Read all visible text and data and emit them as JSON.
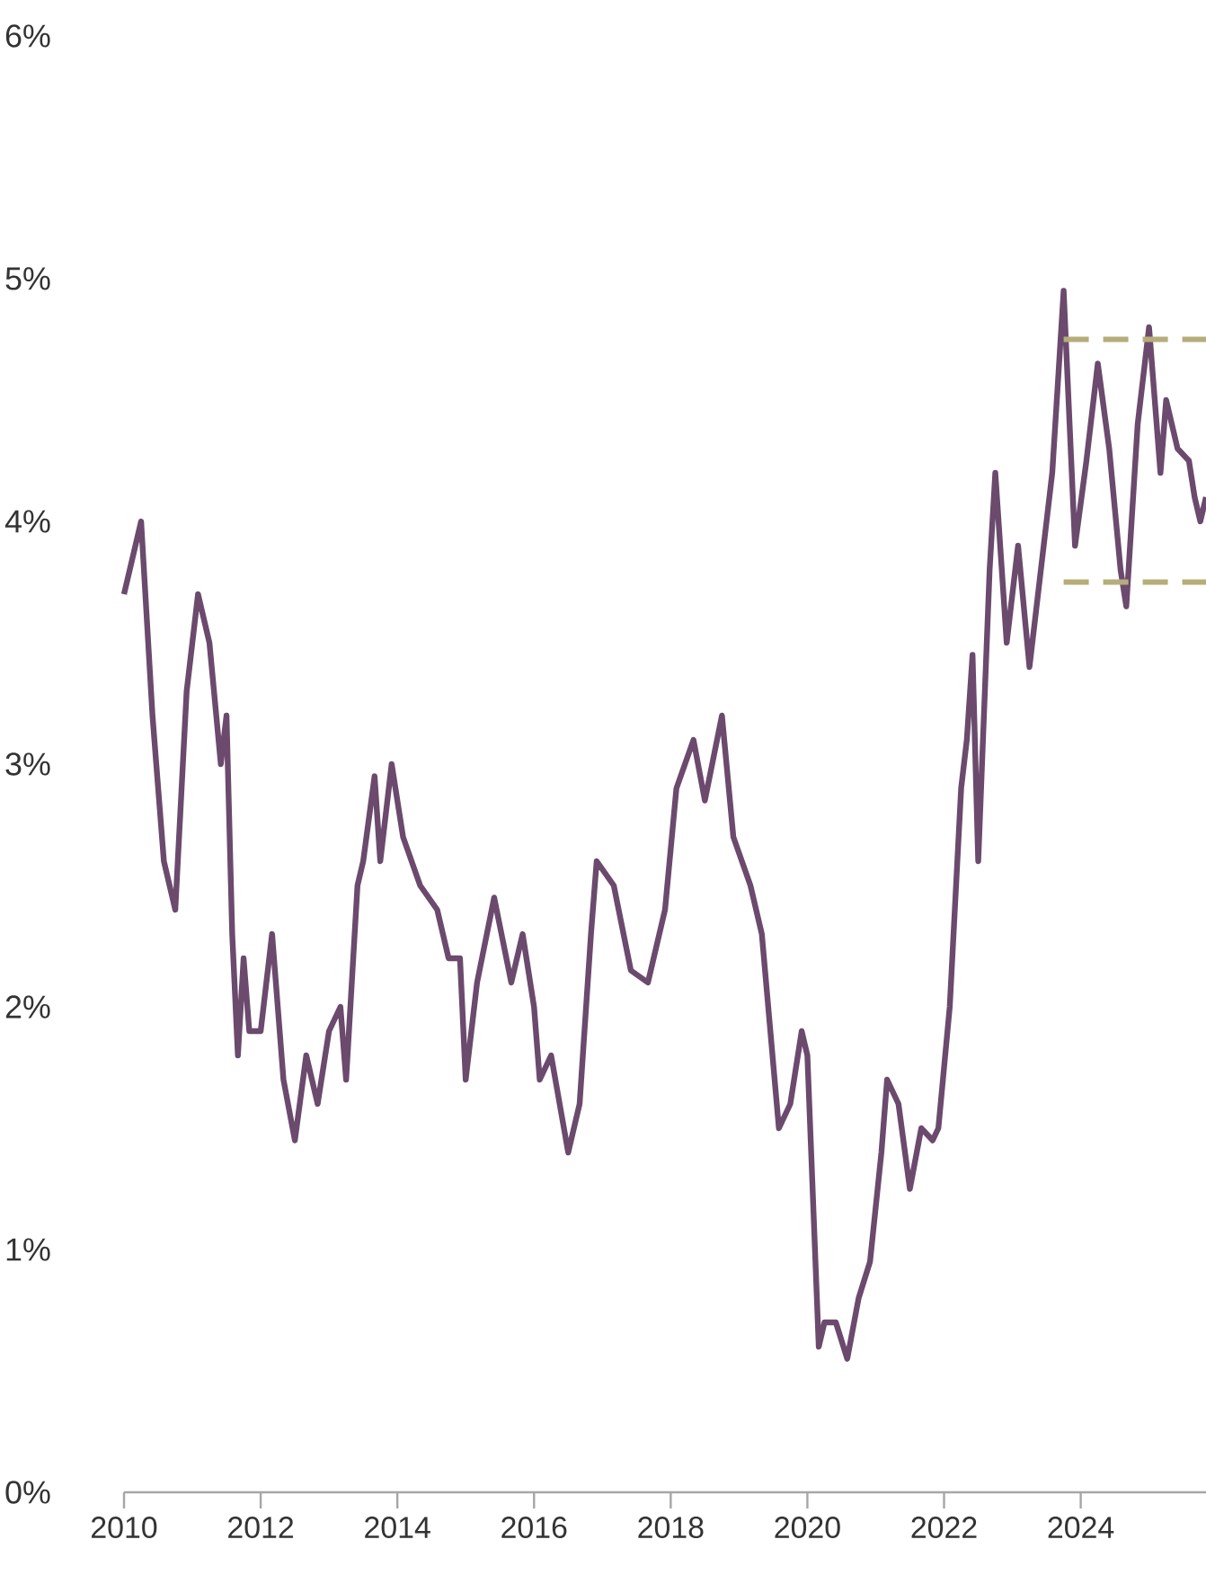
{
  "chart_data": {
    "type": "line",
    "xlim": [
      "2010-01",
      "2025-11"
    ],
    "ylim": [
      0,
      6
    ],
    "xticks": [
      "2010",
      "2012",
      "2014",
      "2016",
      "2018",
      "2020",
      "2022",
      "2024"
    ],
    "yticks": [
      {
        "value": 0,
        "label": "0%"
      },
      {
        "value": 1,
        "label": "1%"
      },
      {
        "value": 2,
        "label": "2%"
      },
      {
        "value": 3,
        "label": "3%"
      },
      {
        "value": 4,
        "label": "4%"
      },
      {
        "value": 5,
        "label": "5%"
      },
      {
        "value": 6,
        "label": "6%"
      }
    ],
    "series": [
      {
        "color": "#6b4a6e",
        "x": [
          "2010-01",
          "2010-04",
          "2010-06",
          "2010-08",
          "2010-10",
          "2010-12",
          "2011-02",
          "2011-04",
          "2011-06",
          "2011-07",
          "2011-08",
          "2011-09",
          "2011-10",
          "2011-11",
          "2012-01",
          "2012-03",
          "2012-05",
          "2012-07",
          "2012-09",
          "2012-11",
          "2013-01",
          "2013-03",
          "2013-04",
          "2013-06",
          "2013-07",
          "2013-09",
          "2013-10",
          "2013-12",
          "2014-02",
          "2014-05",
          "2014-08",
          "2014-10",
          "2014-12",
          "2015-01",
          "2015-03",
          "2015-06",
          "2015-09",
          "2015-11",
          "2016-01",
          "2016-02",
          "2016-04",
          "2016-07",
          "2016-09",
          "2016-11",
          "2016-12",
          "2017-03",
          "2017-06",
          "2017-09",
          "2017-12",
          "2018-02",
          "2018-05",
          "2018-07",
          "2018-10",
          "2018-12",
          "2019-03",
          "2019-05",
          "2019-08",
          "2019-10",
          "2019-12",
          "2020-01",
          "2020-03",
          "2020-04",
          "2020-06",
          "2020-08",
          "2020-10",
          "2020-12",
          "2021-02",
          "2021-03",
          "2021-05",
          "2021-07",
          "2021-09",
          "2021-11",
          "2021-12",
          "2022-02",
          "2022-04",
          "2022-05",
          "2022-06",
          "2022-07",
          "2022-09",
          "2022-10",
          "2022-12",
          "2023-02",
          "2023-04",
          "2023-06",
          "2023-08",
          "2023-10",
          "2023-12",
          "2024-02",
          "2024-04",
          "2024-06",
          "2024-08",
          "2024-09",
          "2024-11",
          "2025-01",
          "2025-03",
          "2025-04",
          "2025-06",
          "2025-08",
          "2025-09",
          "2025-10",
          "2025-11"
        ],
        "values": [
          3.7,
          4.0,
          3.2,
          2.6,
          2.4,
          3.3,
          3.7,
          3.5,
          3.0,
          3.2,
          2.3,
          1.8,
          2.2,
          1.9,
          1.9,
          2.3,
          1.7,
          1.45,
          1.8,
          1.6,
          1.9,
          2.0,
          1.7,
          2.5,
          2.6,
          2.95,
          2.6,
          3.0,
          2.7,
          2.5,
          2.4,
          2.2,
          2.2,
          1.7,
          2.1,
          2.45,
          2.1,
          2.3,
          2.0,
          1.7,
          1.8,
          1.4,
          1.6,
          2.3,
          2.6,
          2.5,
          2.15,
          2.1,
          2.4,
          2.9,
          3.1,
          2.85,
          3.2,
          2.7,
          2.5,
          2.3,
          1.5,
          1.6,
          1.9,
          1.8,
          0.6,
          0.7,
          0.7,
          0.55,
          0.8,
          0.95,
          1.4,
          1.7,
          1.6,
          1.25,
          1.5,
          1.45,
          1.5,
          2.0,
          2.9,
          3.1,
          3.45,
          2.6,
          3.8,
          4.2,
          3.5,
          3.9,
          3.4,
          3.8,
          4.2,
          4.95,
          3.9,
          4.25,
          4.65,
          4.3,
          3.8,
          3.65,
          4.4,
          4.8,
          4.2,
          4.5,
          4.3,
          4.25,
          4.1,
          4.0,
          4.1
        ]
      },
      {
        "type": "line",
        "color": "#b5ad7a",
        "line_style": "dashed",
        "x": [
          "2023-10",
          "2025-11"
        ],
        "values": [
          4.75,
          4.75
        ]
      },
      {
        "type": "line",
        "color": "#b5ad7a",
        "line_style": "dashed",
        "x": [
          "2023-10",
          "2025-11"
        ],
        "values": [
          3.75,
          3.75
        ]
      }
    ]
  }
}
